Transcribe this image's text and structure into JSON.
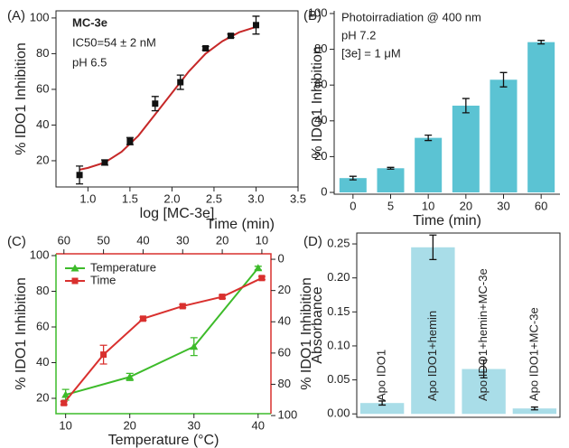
{
  "chart_data": [
    {
      "type": "scatter",
      "panel_label": "(A)",
      "annotations": [
        "MC-3e",
        "IC50=54 ± 2 nM",
        "pH 6.5"
      ],
      "xlabel": "log [MC-3e]",
      "ylabel": "% IDO1 Inhibition",
      "xlim": [
        0.62,
        3.5
      ],
      "xticks": [
        {
          "value": 1,
          "label": "1.0"
        },
        1.5,
        {
          "value": 2,
          "label": "2.0"
        },
        2.5,
        {
          "value": 3,
          "label": "3.0"
        },
        3.5
      ],
      "ylim": [
        5.3,
        104
      ],
      "yticks": [
        20,
        40,
        60,
        80,
        100
      ],
      "series": [
        {
          "color": "#111111",
          "x": [
            0.9,
            1.2,
            1.5,
            1.8,
            2.1,
            2.4,
            2.7,
            3.0
          ],
          "values": [
            12,
            19,
            31,
            52,
            64,
            83,
            90,
            96
          ],
          "errors": [
            5,
            1.5,
            2,
            4,
            4,
            1,
            1,
            5
          ]
        }
      ],
      "fit": {
        "color": "#c62828",
        "x": [
          0.9,
          1.0,
          1.2,
          1.4,
          1.6,
          1.8,
          2.0,
          2.2,
          2.4,
          2.6,
          2.8,
          3.0
        ],
        "values": [
          15,
          16,
          19,
          25,
          34,
          46,
          58,
          70,
          80,
          87,
          92,
          95
        ]
      }
    },
    {
      "type": "bar",
      "panel_label": "(B)",
      "annotations": [
        "Photoirradiation @ 400 nm",
        "pH 7.2",
        "[3e] = 1 μM"
      ],
      "xlabel": "Time (min)",
      "ylabel": "% IDO1 Inhibition",
      "categories": [
        "0",
        "5",
        "10",
        "20",
        "30",
        "60"
      ],
      "values": [
        8,
        13.5,
        30.5,
        48.5,
        63,
        84
      ],
      "errors": [
        1,
        0.5,
        1.5,
        4,
        4,
        1
      ],
      "color": "#5bc3d3",
      "ylim": [
        -1,
        101.5
      ],
      "yticks": [
        0,
        20,
        40,
        60,
        80,
        100
      ]
    },
    {
      "type": "line",
      "panel_label": "(C)",
      "xlabel": "Temperature (°C)",
      "x2label": "Time (min)",
      "ylabel": "% IDO1 Inhibition",
      "y2label": "% IDO1 Inhibition",
      "xlim": [
        8.5,
        42
      ],
      "xticks": [
        10,
        20,
        30,
        40
      ],
      "x2lim": [
        62,
        7.7
      ],
      "x2ticks": [
        60,
        50,
        40,
        30,
        20,
        10
      ],
      "ylim": [
        11.4,
        101
      ],
      "yticks": [
        20,
        40,
        60,
        80,
        100
      ],
      "y2lim": [
        98.8,
        -3.5
      ],
      "y2ticks": [
        0,
        20,
        40,
        60,
        80,
        100
      ],
      "legend": "upper left",
      "series": [
        {
          "name": "Temperature",
          "color": "#3dbb2a",
          "marker": "triangle",
          "x": [
            10,
            20,
            30,
            40
          ],
          "values": [
            22,
            32,
            49,
            93
          ],
          "errors": [
            3,
            2,
            5,
            1
          ]
        },
        {
          "name": "Time",
          "color": "#d9302e",
          "marker": "square",
          "axis": "y2",
          "xaxis": "x2",
          "x": [
            60,
            50,
            40,
            30,
            20,
            10
          ],
          "values": [
            92,
            61,
            38,
            30,
            24,
            12
          ],
          "errors": [
            1,
            6,
            1,
            1,
            1,
            1
          ]
        }
      ]
    },
    {
      "type": "bar",
      "panel_label": "(D)",
      "label_position": "inside",
      "ylabel": "Absorbance",
      "categories": [
        "Apo IDO1",
        "Apo IDO1+hemin",
        "Apo IDO1+hemin+MC-3e",
        "Apo IDO1+MC-3e"
      ],
      "values": [
        0.016,
        0.245,
        0.066,
        0.008
      ],
      "errors": [
        0.003,
        0.018,
        0.013,
        0.002
      ],
      "color": "#a9dde8",
      "ylim": [
        -0.005,
        0.266
      ],
      "yticks": [
        {
          "value": 0,
          "label": "0.00"
        },
        0.05,
        {
          "value": 0.1,
          "label": "0.10"
        },
        0.15,
        {
          "value": 0.2,
          "label": "0.20"
        },
        0.25
      ]
    }
  ]
}
